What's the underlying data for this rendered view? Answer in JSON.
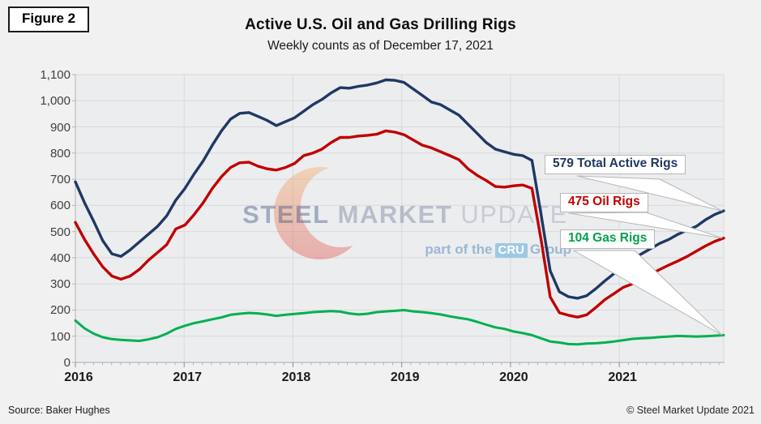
{
  "figure_label": "Figure 2",
  "title": "Active U.S. Oil and Gas Drilling Rigs",
  "subtitle": "Weekly counts as of December 17, 2021",
  "source": "Source: Baker Hughes",
  "copyright": "© Steel Market Update 2021",
  "watermark": {
    "steel": "STEEL",
    "market": "MARKET",
    "update": "UPDATE",
    "tagline_prefix": "part of the",
    "cru": "CRU",
    "tagline_suffix": "Group",
    "crescent_icon": "crescent-logo",
    "crescent_color_top": "#f5a95f",
    "crescent_color_bottom": "#dd4b45"
  },
  "annotations": [
    {
      "text": "579 Total Active Rigs",
      "value": 579,
      "color": "#1f3864"
    },
    {
      "text": "475 Oil Rigs",
      "value": 475,
      "color": "#c00000"
    },
    {
      "text": "104 Gas Rigs",
      "value": 104,
      "color": "#00a14b"
    }
  ],
  "chart_data": {
    "type": "line",
    "title": "Active U.S. Oil and Gas Drilling Rigs",
    "subtitle": "Weekly counts as of December 17, 2021",
    "xlabel": "",
    "ylabel": "",
    "xlim": [
      2016,
      2021.96
    ],
    "ylim": [
      0,
      1100
    ],
    "grid": true,
    "legend": "none (labeled via callouts)",
    "x_unit": "decimal year, points spaced ~monthly from Jan 2016 to Dec 17 2021",
    "x_tick_labels": [
      "2016",
      "2017",
      "2018",
      "2019",
      "2020",
      "2021"
    ],
    "x_tick_values": [
      2016,
      2017,
      2018,
      2019,
      2020,
      2021
    ],
    "y_tick_labels": [
      "0",
      "100",
      "200",
      "300",
      "400",
      "500",
      "600",
      "700",
      "800",
      "900",
      "1,000",
      "1,100"
    ],
    "y_tick_values": [
      0,
      100,
      200,
      300,
      400,
      500,
      600,
      700,
      800,
      900,
      1000,
      1100
    ],
    "series": [
      {
        "name": "Total Active Rigs",
        "color": "#1f3864",
        "final_value": 579,
        "values": [
          690,
          610,
          540,
          465,
          415,
          405,
          430,
          460,
          490,
          520,
          560,
          620,
          665,
          720,
          770,
          830,
          885,
          930,
          952,
          955,
          940,
          925,
          905,
          920,
          935,
          960,
          985,
          1005,
          1030,
          1050,
          1048,
          1055,
          1060,
          1068,
          1080,
          1078,
          1070,
          1045,
          1020,
          995,
          985,
          965,
          945,
          910,
          875,
          840,
          815,
          805,
          795,
          790,
          772,
          566,
          350,
          270,
          251,
          245,
          255,
          282,
          312,
          340,
          370,
          395,
          415,
          435,
          455,
          470,
          490,
          505,
          520,
          545,
          565,
          579
        ]
      },
      {
        "name": "Oil Rigs",
        "color": "#c00000",
        "final_value": 475,
        "values": [
          535,
          470,
          415,
          365,
          330,
          318,
          330,
          355,
          390,
          420,
          450,
          510,
          525,
          565,
          610,
          665,
          710,
          745,
          763,
          765,
          750,
          740,
          735,
          745,
          760,
          790,
          800,
          815,
          840,
          860,
          860,
          865,
          868,
          872,
          885,
          880,
          870,
          850,
          830,
          820,
          805,
          790,
          775,
          740,
          715,
          695,
          672,
          670,
          675,
          678,
          665,
          470,
          250,
          190,
          180,
          173,
          182,
          210,
          240,
          263,
          287,
          300,
          318,
          337,
          355,
          372,
          388,
          405,
          425,
          445,
          462,
          475
        ]
      },
      {
        "name": "Gas Rigs",
        "color": "#00b050",
        "final_value": 104,
        "values": [
          160,
          130,
          110,
          96,
          89,
          86,
          84,
          82,
          88,
          96,
          110,
          128,
          140,
          150,
          157,
          165,
          172,
          182,
          186,
          189,
          187,
          183,
          178,
          182,
          185,
          188,
          192,
          194,
          196,
          194,
          187,
          183,
          186,
          192,
          195,
          197,
          200,
          195,
          192,
          188,
          183,
          176,
          170,
          165,
          155,
          144,
          134,
          128,
          118,
          112,
          104,
          92,
          80,
          76,
          70,
          69,
          72,
          73,
          76,
          80,
          85,
          90,
          92,
          94,
          97,
          99,
          101,
          100,
          99,
          100,
          102,
          104
        ]
      }
    ]
  }
}
